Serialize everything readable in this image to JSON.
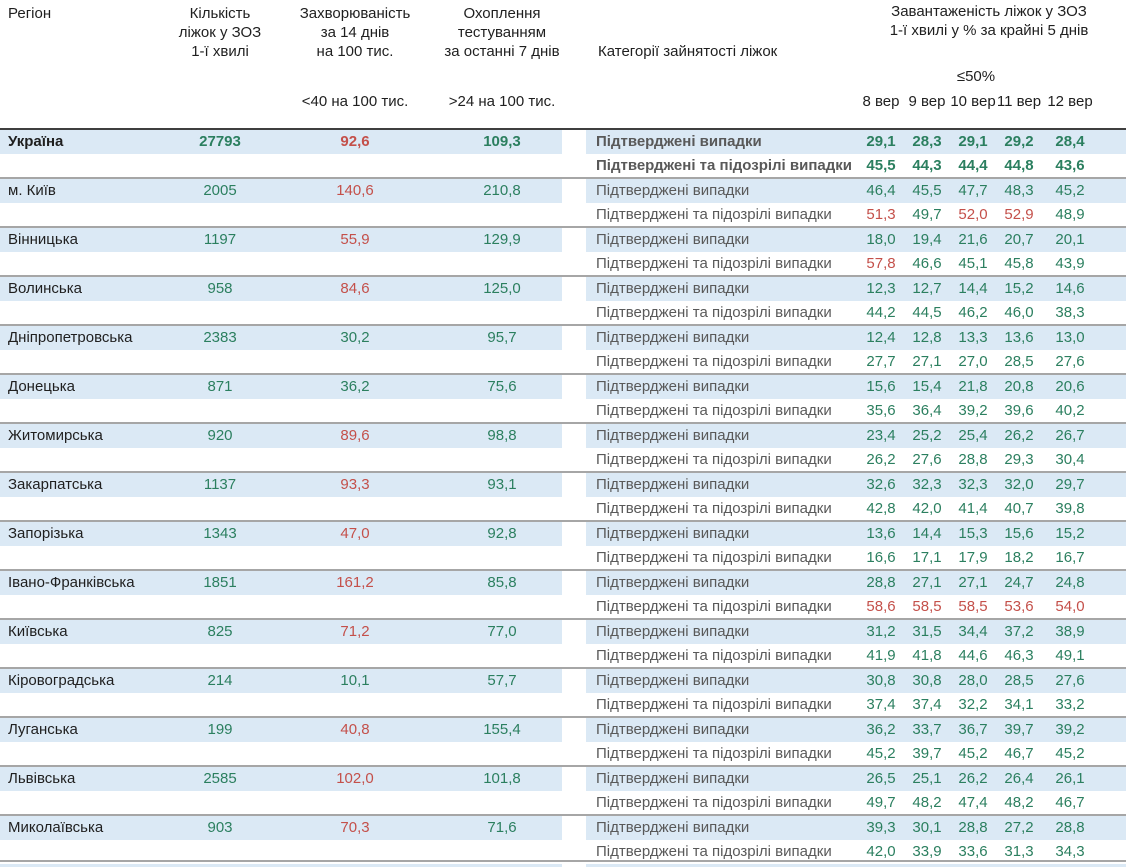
{
  "header": {
    "region": "Регіон",
    "beds": "Кількість\nліжок у ЗОЗ\n1-ї хвилі",
    "incidence": "Захворюваність\nза 14 днів\nна 100 тис.",
    "testing": "Охоплення\nтестуванням\nза останні 7 днів",
    "category": "Категорії зайнятості ліжок",
    "load": "Завантаженість ліжок у ЗОЗ\n1-ї хвилі у % за крайні 5 днів",
    "incidence_threshold": "<40 на 100 тис.",
    "testing_threshold": ">24 на 100 тис.",
    "load_threshold": "≤50%"
  },
  "row_labels": {
    "confirmed": "Підтверджені випадки",
    "confirmed_suspected": "Підтверджені та підозрілі випадки"
  },
  "colors": {
    "positive_green": "#2b7f5f",
    "negative_red": "#c4504a",
    "row_band_blue": "#dbe9f5",
    "group_border_gray": "#a6a6a6",
    "header_border_dark": "#3f3f3f"
  },
  "chart_data": {
    "type": "table",
    "title": "Завантаженість ліжок у ЗОЗ 1-ї хвилі у % за крайні 5 днів",
    "columns": [
      "Регіон",
      "Кількість ліжок у ЗОЗ 1-ї хвилі",
      "Захворюваність за 14 днів на 100 тис.",
      "Охоплення тестуванням за останні 7 днів",
      "Категорії зайнятості ліжок",
      "8 вер",
      "9 вер",
      "10 вер",
      "11 вер",
      "12 вер"
    ],
    "dates": [
      "8 вер",
      "9 вер",
      "10 вер",
      "11 вер",
      "12 вер"
    ],
    "rows": [
      {
        "name": "Україна",
        "bold": true,
        "beds": "27793",
        "incidence": "92,6",
        "incidence_red": true,
        "testing": "109,3",
        "confirmed": [
          "29,1",
          "28,3",
          "29,1",
          "29,2",
          "28,4"
        ],
        "confirmed_red": [],
        "suspected": [
          "45,5",
          "44,3",
          "44,4",
          "44,8",
          "43,6"
        ],
        "suspected_red": []
      },
      {
        "name": "м. Київ",
        "bold": false,
        "beds": "2005",
        "incidence": "140,6",
        "incidence_red": true,
        "testing": "210,8",
        "confirmed": [
          "46,4",
          "45,5",
          "47,7",
          "48,3",
          "45,2"
        ],
        "confirmed_red": [],
        "suspected": [
          "51,3",
          "49,7",
          "52,0",
          "52,9",
          "48,9"
        ],
        "suspected_red": [
          0,
          2,
          3
        ]
      },
      {
        "name": "Вінницька",
        "bold": false,
        "beds": "1197",
        "incidence": "55,9",
        "incidence_red": true,
        "testing": "129,9",
        "confirmed": [
          "18,0",
          "19,4",
          "21,6",
          "20,7",
          "20,1"
        ],
        "confirmed_red": [],
        "suspected": [
          "57,8",
          "46,6",
          "45,1",
          "45,8",
          "43,9"
        ],
        "suspected_red": [
          0
        ]
      },
      {
        "name": "Волинська",
        "bold": false,
        "beds": "958",
        "incidence": "84,6",
        "incidence_red": true,
        "testing": "125,0",
        "confirmed": [
          "12,3",
          "12,7",
          "14,4",
          "15,2",
          "14,6"
        ],
        "confirmed_red": [],
        "suspected": [
          "44,2",
          "44,5",
          "46,2",
          "46,0",
          "38,3"
        ],
        "suspected_red": []
      },
      {
        "name": "Дніпропетровська",
        "bold": false,
        "beds": "2383",
        "incidence": "30,2",
        "incidence_red": false,
        "testing": "95,7",
        "confirmed": [
          "12,4",
          "12,8",
          "13,3",
          "13,6",
          "13,0"
        ],
        "confirmed_red": [],
        "suspected": [
          "27,7",
          "27,1",
          "27,0",
          "28,5",
          "27,6"
        ],
        "suspected_red": []
      },
      {
        "name": "Донецька",
        "bold": false,
        "beds": "871",
        "incidence": "36,2",
        "incidence_red": false,
        "testing": "75,6",
        "confirmed": [
          "15,6",
          "15,4",
          "21,8",
          "20,8",
          "20,6"
        ],
        "confirmed_red": [],
        "suspected": [
          "35,6",
          "36,4",
          "39,2",
          "39,6",
          "40,2"
        ],
        "suspected_red": []
      },
      {
        "name": "Житомирська",
        "bold": false,
        "beds": "920",
        "incidence": "89,6",
        "incidence_red": true,
        "testing": "98,8",
        "confirmed": [
          "23,4",
          "25,2",
          "25,4",
          "26,2",
          "26,7"
        ],
        "confirmed_red": [],
        "suspected": [
          "26,2",
          "27,6",
          "28,8",
          "29,3",
          "30,4"
        ],
        "suspected_red": []
      },
      {
        "name": "Закарпатська",
        "bold": false,
        "beds": "1137",
        "incidence": "93,3",
        "incidence_red": true,
        "testing": "93,1",
        "confirmed": [
          "32,6",
          "32,3",
          "32,3",
          "32,0",
          "29,7"
        ],
        "confirmed_red": [],
        "suspected": [
          "42,8",
          "42,0",
          "41,4",
          "40,7",
          "39,8"
        ],
        "suspected_red": []
      },
      {
        "name": "Запорізька",
        "bold": false,
        "beds": "1343",
        "incidence": "47,0",
        "incidence_red": true,
        "testing": "92,8",
        "confirmed": [
          "13,6",
          "14,4",
          "15,3",
          "15,6",
          "15,2"
        ],
        "confirmed_red": [],
        "suspected": [
          "16,6",
          "17,1",
          "17,9",
          "18,2",
          "16,7"
        ],
        "suspected_red": []
      },
      {
        "name": "Івано-Франківська",
        "bold": false,
        "beds": "1851",
        "incidence": "161,2",
        "incidence_red": true,
        "testing": "85,8",
        "confirmed": [
          "28,8",
          "27,1",
          "27,1",
          "24,7",
          "24,8"
        ],
        "confirmed_red": [],
        "suspected": [
          "58,6",
          "58,5",
          "58,5",
          "53,6",
          "54,0"
        ],
        "suspected_red": [
          0,
          1,
          2,
          3,
          4
        ]
      },
      {
        "name": "Київська",
        "bold": false,
        "beds": "825",
        "incidence": "71,2",
        "incidence_red": true,
        "testing": "77,0",
        "confirmed": [
          "31,2",
          "31,5",
          "34,4",
          "37,2",
          "38,9"
        ],
        "confirmed_red": [],
        "suspected": [
          "41,9",
          "41,8",
          "44,6",
          "46,3",
          "49,1"
        ],
        "suspected_red": []
      },
      {
        "name": "Кіровоградська",
        "bold": false,
        "beds": "214",
        "incidence": "10,1",
        "incidence_red": false,
        "testing": "57,7",
        "confirmed": [
          "30,8",
          "30,8",
          "28,0",
          "28,5",
          "27,6"
        ],
        "confirmed_red": [],
        "suspected": [
          "37,4",
          "37,4",
          "32,2",
          "34,1",
          "33,2"
        ],
        "suspected_red": []
      },
      {
        "name": "Луганська",
        "bold": false,
        "beds": "199",
        "incidence": "40,8",
        "incidence_red": true,
        "testing": "155,4",
        "confirmed": [
          "36,2",
          "33,7",
          "36,7",
          "39,7",
          "39,2"
        ],
        "confirmed_red": [],
        "suspected": [
          "45,2",
          "39,7",
          "45,2",
          "46,7",
          "45,2"
        ],
        "suspected_red": []
      },
      {
        "name": "Львівська",
        "bold": false,
        "beds": "2585",
        "incidence": "102,0",
        "incidence_red": true,
        "testing": "101,8",
        "confirmed": [
          "26,5",
          "25,1",
          "26,2",
          "26,4",
          "26,1"
        ],
        "confirmed_red": [],
        "suspected": [
          "49,7",
          "48,2",
          "47,4",
          "48,2",
          "46,7"
        ],
        "suspected_red": []
      },
      {
        "name": "Миколаївська",
        "bold": false,
        "beds": "903",
        "incidence": "70,3",
        "incidence_red": true,
        "testing": "71,6",
        "confirmed": [
          "39,3",
          "30,1",
          "28,8",
          "27,2",
          "28,8"
        ],
        "confirmed_red": [],
        "suspected": [
          "42,0",
          "33,9",
          "33,6",
          "31,3",
          "34,3"
        ],
        "suspected_red": []
      }
    ]
  }
}
